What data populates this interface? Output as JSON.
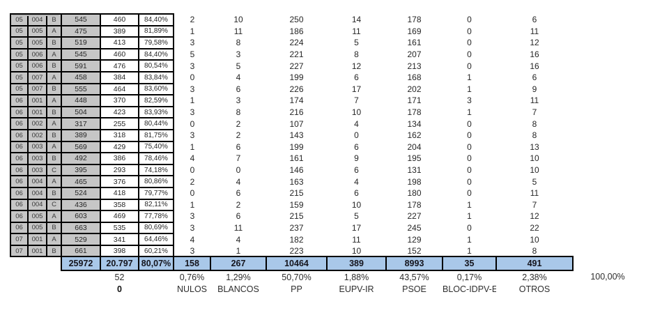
{
  "table": {
    "column_keys": [
      "district",
      "section",
      "mesa",
      "censo",
      "votantes",
      "turnout_pct"
    ],
    "party_keys": [
      "nulos",
      "blancos",
      "pp",
      "eupv-ir",
      "psoe",
      "bloc-idpv-e",
      "otros"
    ],
    "rows": [
      {
        "district": "05",
        "section": "004",
        "mesa": "B",
        "censo": "545",
        "votantes": "460",
        "pct": "84,40%",
        "values": [
          "2",
          "10",
          "250",
          "14",
          "178",
          "0",
          "6"
        ]
      },
      {
        "district": "05",
        "section": "005",
        "mesa": "A",
        "censo": "475",
        "votantes": "389",
        "pct": "81,89%",
        "values": [
          "1",
          "11",
          "186",
          "11",
          "169",
          "0",
          "11"
        ]
      },
      {
        "district": "05",
        "section": "005",
        "mesa": "B",
        "censo": "519",
        "votantes": "413",
        "pct": "79,58%",
        "values": [
          "3",
          "8",
          "224",
          "5",
          "161",
          "0",
          "12"
        ]
      },
      {
        "district": "05",
        "section": "006",
        "mesa": "A",
        "censo": "545",
        "votantes": "460",
        "pct": "84,40%",
        "values": [
          "5",
          "3",
          "221",
          "8",
          "207",
          "0",
          "16"
        ]
      },
      {
        "district": "05",
        "section": "006",
        "mesa": "B",
        "censo": "591",
        "votantes": "476",
        "pct": "80,54%",
        "values": [
          "3",
          "5",
          "227",
          "12",
          "213",
          "0",
          "16"
        ]
      },
      {
        "district": "05",
        "section": "007",
        "mesa": "A",
        "censo": "458",
        "votantes": "384",
        "pct": "83,84%",
        "values": [
          "0",
          "4",
          "199",
          "6",
          "168",
          "1",
          "6"
        ]
      },
      {
        "district": "05",
        "section": "007",
        "mesa": "B",
        "censo": "555",
        "votantes": "464",
        "pct": "83,60%",
        "values": [
          "3",
          "6",
          "226",
          "17",
          "202",
          "1",
          "9"
        ]
      },
      {
        "district": "06",
        "section": "001",
        "mesa": "A",
        "censo": "448",
        "votantes": "370",
        "pct": "82,59%",
        "values": [
          "1",
          "3",
          "174",
          "7",
          "171",
          "3",
          "11"
        ]
      },
      {
        "district": "06",
        "section": "001",
        "mesa": "B",
        "censo": "504",
        "votantes": "423",
        "pct": "83,93%",
        "values": [
          "3",
          "8",
          "216",
          "10",
          "178",
          "1",
          "7"
        ]
      },
      {
        "district": "06",
        "section": "002",
        "mesa": "A",
        "censo": "317",
        "votantes": "255",
        "pct": "80,44%",
        "values": [
          "0",
          "2",
          "107",
          "4",
          "134",
          "0",
          "8"
        ]
      },
      {
        "district": "06",
        "section": "002",
        "mesa": "B",
        "censo": "389",
        "votantes": "318",
        "pct": "81,75%",
        "values": [
          "3",
          "2",
          "143",
          "0",
          "162",
          "0",
          "8"
        ]
      },
      {
        "district": "06",
        "section": "003",
        "mesa": "A",
        "censo": "569",
        "votantes": "429",
        "pct": "75,40%",
        "values": [
          "1",
          "6",
          "199",
          "6",
          "204",
          "0",
          "13"
        ]
      },
      {
        "district": "06",
        "section": "003",
        "mesa": "B",
        "censo": "492",
        "votantes": "386",
        "pct": "78,46%",
        "values": [
          "4",
          "7",
          "161",
          "9",
          "195",
          "0",
          "10"
        ]
      },
      {
        "district": "06",
        "section": "003",
        "mesa": "C",
        "censo": "395",
        "votantes": "293",
        "pct": "74,18%",
        "values": [
          "0",
          "0",
          "146",
          "6",
          "131",
          "0",
          "10"
        ]
      },
      {
        "district": "06",
        "section": "004",
        "mesa": "A",
        "censo": "465",
        "votantes": "376",
        "pct": "80,86%",
        "values": [
          "2",
          "4",
          "163",
          "4",
          "198",
          "0",
          "5"
        ]
      },
      {
        "district": "06",
        "section": "004",
        "mesa": "B",
        "censo": "524",
        "votantes": "418",
        "pct": "79,77%",
        "values": [
          "0",
          "6",
          "215",
          "6",
          "180",
          "0",
          "11"
        ]
      },
      {
        "district": "06",
        "section": "004",
        "mesa": "C",
        "censo": "436",
        "votantes": "358",
        "pct": "82,11%",
        "values": [
          "1",
          "2",
          "159",
          "10",
          "178",
          "1",
          "7"
        ]
      },
      {
        "district": "06",
        "section": "005",
        "mesa": "A",
        "censo": "603",
        "votantes": "469",
        "pct": "77,78%",
        "values": [
          "3",
          "6",
          "215",
          "5",
          "227",
          "1",
          "12"
        ]
      },
      {
        "district": "06",
        "section": "005",
        "mesa": "B",
        "censo": "663",
        "votantes": "535",
        "pct": "80,69%",
        "values": [
          "3",
          "11",
          "237",
          "17",
          "245",
          "0",
          "22"
        ]
      },
      {
        "district": "07",
        "section": "001",
        "mesa": "A",
        "censo": "529",
        "votantes": "341",
        "pct": "64,46%",
        "values": [
          "4",
          "4",
          "182",
          "11",
          "129",
          "1",
          "10"
        ]
      },
      {
        "district": "07",
        "section": "001",
        "mesa": "B",
        "censo": "661",
        "votantes": "398",
        "pct": "60,21%",
        "values": [
          "3",
          "1",
          "223",
          "10",
          "152",
          "1",
          "8"
        ]
      }
    ],
    "totals": {
      "censo": "25972",
      "votantes": "20.797",
      "pct": "80,07%",
      "values": [
        "158",
        "267",
        "10464",
        "389",
        "8993",
        "35",
        "491"
      ]
    },
    "summary_pct_row": {
      "votantes_extra": "52",
      "pcts": [
        "0,76%",
        "1,29%",
        "50,70%",
        "1,88%",
        "43,57%",
        "0,17%",
        "2,38%"
      ],
      "grand_total_pct": "100,00%"
    },
    "summary_label_row": {
      "votantes_extra": "0",
      "labels": [
        "NULOS",
        "BLANCOS",
        "PP",
        "EUPV-IR",
        "PSOE",
        "BLOC-IDPV-E",
        "OTROS"
      ]
    },
    "colors": {
      "header_gray": "#c6c6c6",
      "total_blue": "#a9c8e9",
      "border_black": "#000000"
    }
  }
}
